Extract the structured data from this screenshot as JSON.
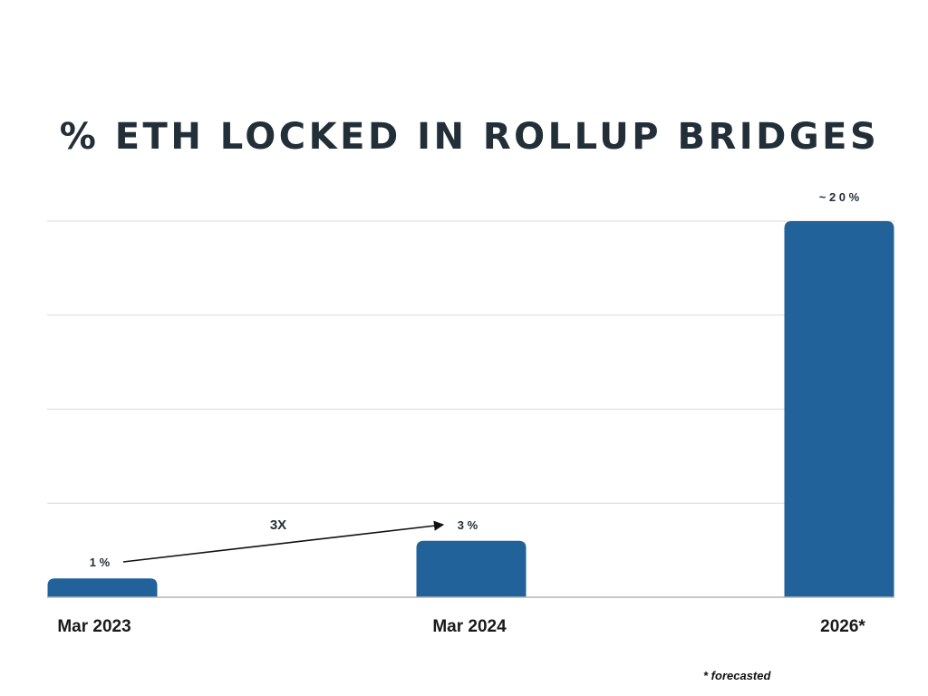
{
  "chart_data": {
    "type": "bar",
    "title": "% ETH LOCKED IN ROLLUP BRIDGES",
    "categories": [
      "Mar 2023",
      "Mar 2024",
      "2026*"
    ],
    "values": [
      1,
      3,
      20
    ],
    "data_labels": [
      "1 %",
      "3 %",
      "~ 2 0 %"
    ],
    "ylim": [
      0,
      20
    ],
    "grid": true,
    "bar_color": "#22629a",
    "annotations": [
      {
        "text": "3X",
        "arrow_from": "Mar 2023",
        "arrow_to": "Mar 2024"
      }
    ],
    "footnote": "* forecasted"
  }
}
